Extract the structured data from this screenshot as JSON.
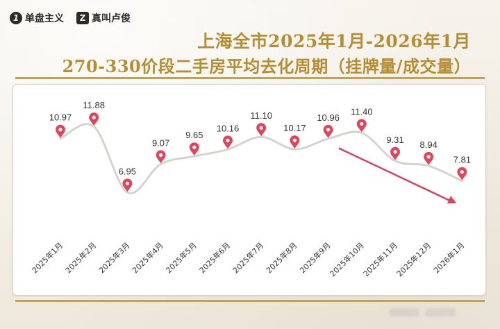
{
  "brands": [
    "单盘主义",
    "真叫卢俊"
  ],
  "colors": {
    "title": "#b58d33",
    "line": "#d6d3ce",
    "pin": "#e0465b",
    "arrow": "#d2455a",
    "label": "#333333"
  },
  "chart_data": {
    "type": "line",
    "title": "上海全市2025年1月-2026年1月",
    "subtitle": "270-330价段二手房平均去化周期（挂牌量/成交量）",
    "categories": [
      "2025年1月",
      "2025年2月",
      "2025年3月",
      "2025年4月",
      "2025年5月",
      "2025年6月",
      "2025年7月",
      "2025年8月",
      "2025年9月",
      "2025年10月",
      "2025年11月",
      "2025年12月",
      "2026年1月"
    ],
    "series": [
      {
        "values": [
          10.97,
          11.88,
          6.95,
          9.07,
          9.65,
          10.16,
          11.1,
          10.17,
          10.96,
          11.4,
          9.31,
          8.94,
          7.81
        ]
      }
    ],
    "data_labels": [
      "10.97",
      "11.88",
      "6.95",
      "9.07",
      "9.65",
      "10.16",
      "11.10",
      "10.17",
      "10.96",
      "11.40",
      "9.31",
      "8.94",
      "7.81"
    ],
    "ylim": [
      6,
      14
    ],
    "grid": false,
    "trend_arrow": {
      "from": "2025年10月",
      "to": "2026年1月",
      "direction": "down"
    }
  }
}
